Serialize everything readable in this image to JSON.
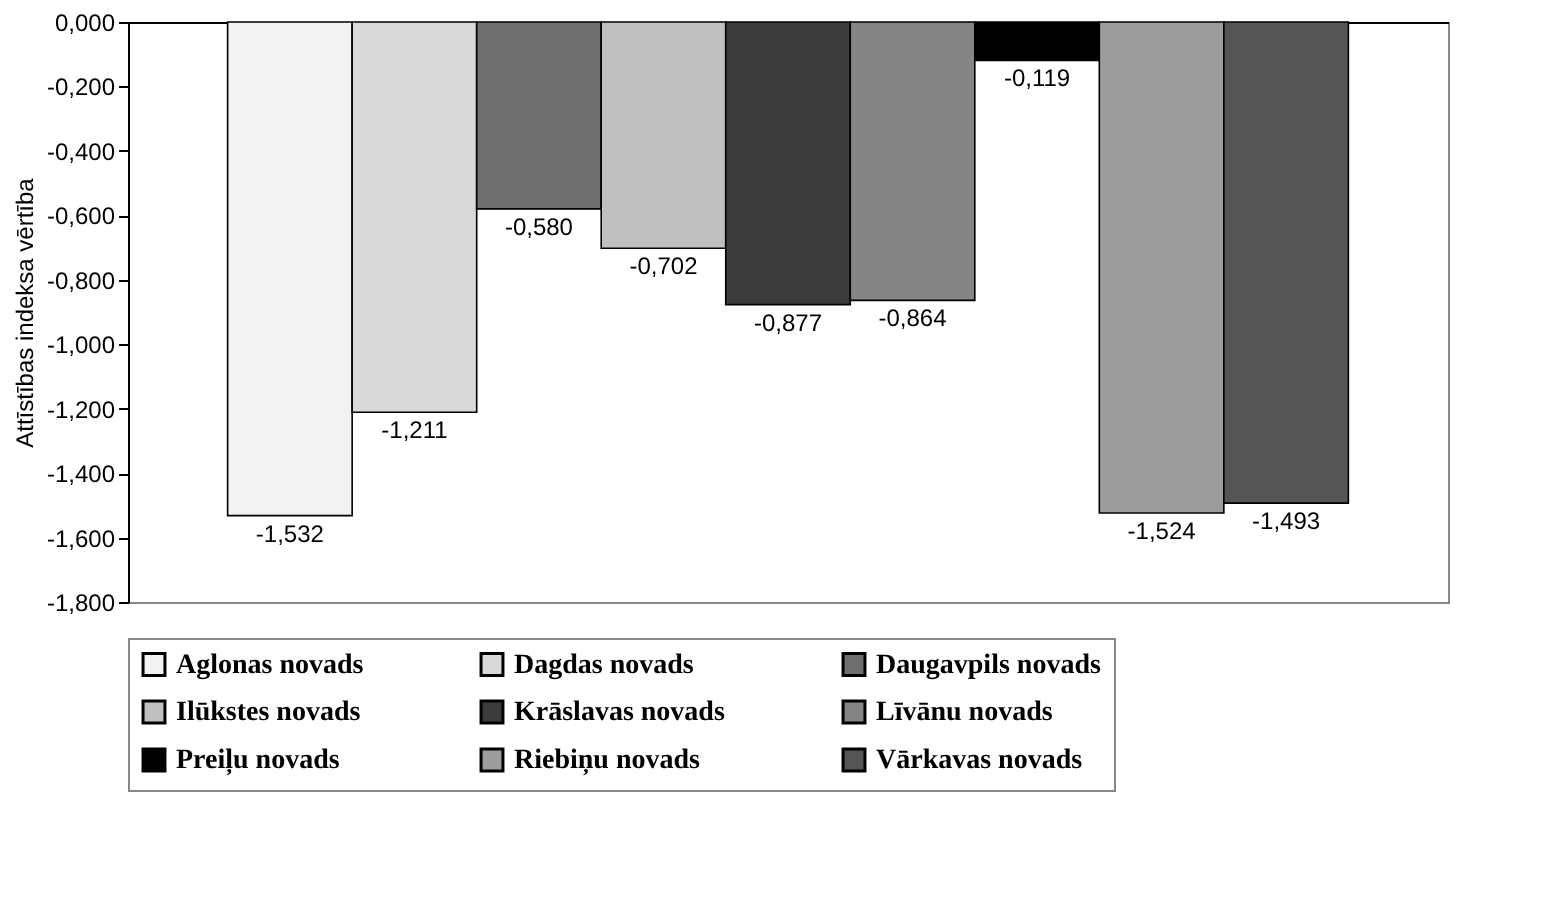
{
  "chart_data": {
    "type": "bar",
    "ylabel": "Attīstības indeksa vērtība",
    "categories": [
      null
    ],
    "series": [
      {
        "name": "Aglonas novads",
        "color": "#f2f2f2",
        "values": [
          -1.532
        ],
        "value_labels": [
          "-1,532"
        ]
      },
      {
        "name": "Dagdas novads",
        "color": "#d9d9d9",
        "values": [
          -1.211
        ],
        "value_labels": [
          "-1,211"
        ]
      },
      {
        "name": "Daugavpils novads",
        "color": "#6e6e6e",
        "values": [
          -0.58
        ],
        "value_labels": [
          "-0,580"
        ]
      },
      {
        "name": "Ilūkstes novads",
        "color": "#c0c0c0",
        "values": [
          -0.702
        ],
        "value_labels": [
          "-0,702"
        ]
      },
      {
        "name": "Krāslavas novads",
        "color": "#3c3c3c",
        "values": [
          -0.877
        ],
        "value_labels": [
          "-0,877"
        ]
      },
      {
        "name": "Līvānu novads",
        "color": "#858585",
        "values": [
          -0.864
        ],
        "value_labels": [
          "-0,864"
        ]
      },
      {
        "name": "Preiļu novads",
        "color": "#000000",
        "values": [
          -0.119
        ],
        "value_labels": [
          "-0,119"
        ]
      },
      {
        "name": "Riebiņu novads",
        "color": "#9c9c9c",
        "values": [
          -1.524
        ],
        "value_labels": [
          "-1,524"
        ]
      },
      {
        "name": "Vārkavas novads",
        "color": "#555555",
        "values": [
          -1.493
        ],
        "value_labels": [
          "-1,493"
        ]
      }
    ],
    "ylim": [
      -1.8,
      0
    ],
    "yticks": [
      {
        "value": 0,
        "label": "0,000"
      },
      {
        "value": -0.2,
        "label": "-0,200"
      },
      {
        "value": -0.4,
        "label": "-0,400"
      },
      {
        "value": -0.6,
        "label": "-0,600"
      },
      {
        "value": -0.8,
        "label": "-0,800"
      },
      {
        "value": -1.0,
        "label": "-1,000"
      },
      {
        "value": -1.2,
        "label": "-1,200"
      },
      {
        "value": -1.4,
        "label": "-1,400"
      },
      {
        "value": -1.6,
        "label": "-1,600"
      },
      {
        "value": -1.8,
        "label": "-1,800"
      }
    ],
    "grid": false,
    "legend": "bottom",
    "tick_labels": "y"
  }
}
